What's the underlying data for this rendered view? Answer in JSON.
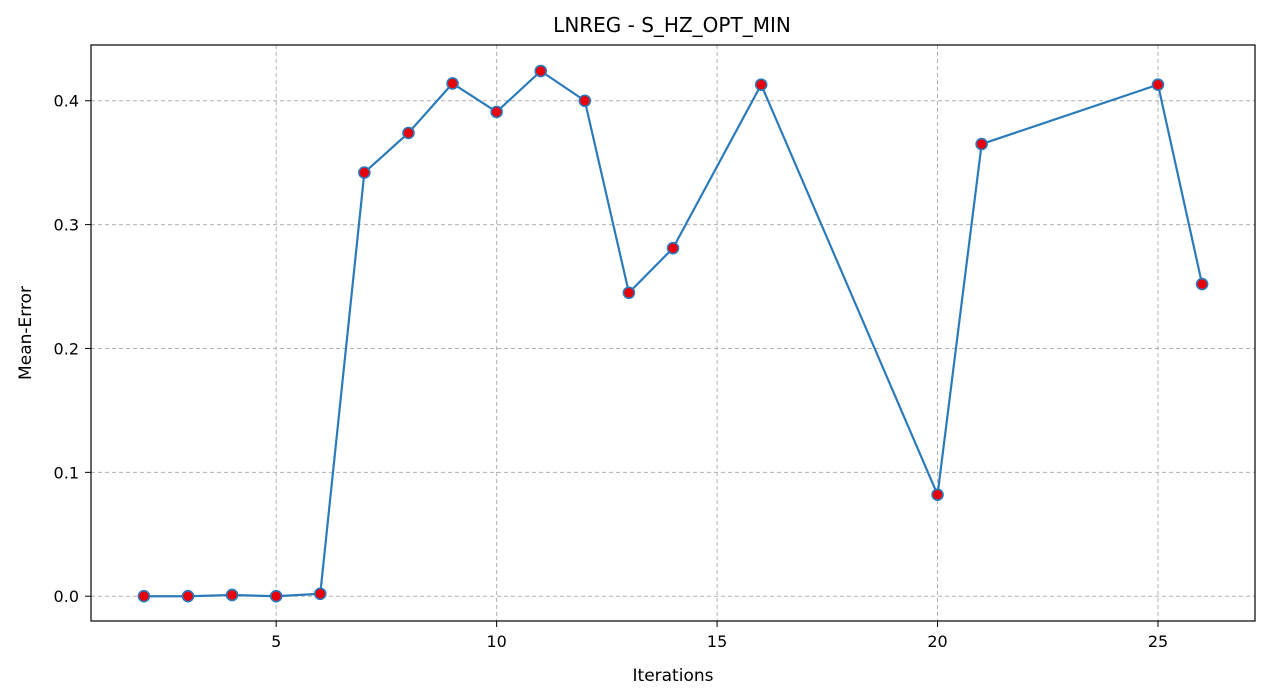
{
  "chart_data": {
    "type": "line",
    "title": "LNREG - S_HZ_OPT_MIN",
    "xlabel": "Iterations",
    "ylabel": "Mean-Error",
    "xlim": [
      0.8,
      27.2
    ],
    "ylim": [
      -0.02,
      0.445
    ],
    "xticks": [
      5,
      10,
      15,
      20,
      25
    ],
    "xtick_labels": [
      "5",
      "10",
      "15",
      "20",
      "25"
    ],
    "yticks": [
      0.0,
      0.1,
      0.2,
      0.3,
      0.4
    ],
    "ytick_labels": [
      "0.0",
      "0.1",
      "0.2",
      "0.3",
      "0.4"
    ],
    "grid": true,
    "line_color": "#2b7bba",
    "marker_color": "#e8000b",
    "series": [
      {
        "x": [
          2,
          3,
          4,
          5,
          6,
          7,
          8,
          9,
          10,
          11,
          12,
          13,
          14,
          16,
          20,
          21,
          25,
          26
        ],
        "values": [
          0.0,
          0.0,
          0.001,
          0.0,
          0.002,
          0.342,
          0.374,
          0.414,
          0.391,
          0.424,
          0.4,
          0.245,
          0.281,
          0.413,
          0.082,
          0.365,
          0.413,
          0.252
        ]
      }
    ]
  }
}
